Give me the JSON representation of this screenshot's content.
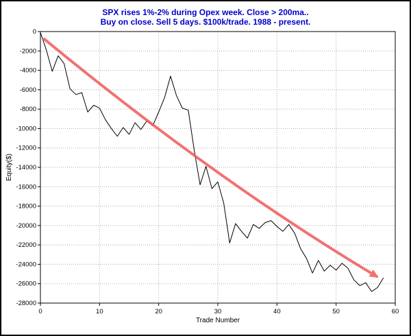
{
  "header": {
    "line1": "SPX rises 1%-2% during Opex week. Close > 200ma..",
    "line2": "Buy on close. Sell 5 days. $100k/trade. 1988 - present."
  },
  "colors": {
    "title": "#0000c8",
    "axis_text": "#000000",
    "grid": "#aaaaaa",
    "plot_border": "#000000",
    "equity_line": "#000000",
    "arrow": "#ef5a5a"
  },
  "chart_data": {
    "type": "line",
    "title": "SPX rises 1%-2% during Opex week. Close > 200ma.. Buy on close. Sell 5 days. $100k/trade. 1988 - present.",
    "xlabel": "Trade Number",
    "ylabel": "Equity($)",
    "xlim": [
      0,
      60
    ],
    "ylim": [
      -28000,
      0
    ],
    "x_ticks": [
      0,
      10,
      20,
      30,
      40,
      50,
      60
    ],
    "y_ticks": [
      0,
      -2000,
      -4000,
      -6000,
      -8000,
      -10000,
      -12000,
      -14000,
      -16000,
      -18000,
      -20000,
      -22000,
      -24000,
      -26000,
      -28000
    ],
    "grid": true,
    "legend": "none",
    "series": [
      {
        "name": "equity_curve",
        "color": "#000000",
        "x": [
          0,
          1,
          2,
          3,
          4,
          5,
          6,
          7,
          8,
          9,
          10,
          11,
          12,
          13,
          14,
          15,
          16,
          17,
          18,
          19,
          20,
          21,
          22,
          23,
          24,
          25,
          26,
          27,
          28,
          29,
          30,
          31,
          32,
          33,
          34,
          35,
          36,
          37,
          38,
          39,
          40,
          41,
          42,
          43,
          44,
          45,
          46,
          47,
          48,
          49,
          50,
          51,
          52,
          53,
          54,
          55,
          56,
          57,
          58
        ],
        "y": [
          -100,
          -1900,
          -4100,
          -2500,
          -3300,
          -5900,
          -6500,
          -6300,
          -8300,
          -7600,
          -7900,
          -9100,
          -10000,
          -10800,
          -9900,
          -10600,
          -9400,
          -10100,
          -9200,
          -9700,
          -8300,
          -6800,
          -4600,
          -6600,
          -7900,
          -8100,
          -12200,
          -15800,
          -13900,
          -16200,
          -15500,
          -17700,
          -21800,
          -19800,
          -20600,
          -21300,
          -19900,
          -20300,
          -19700,
          -19500,
          -20100,
          -20600,
          -19900,
          -20800,
          -22400,
          -23400,
          -24900,
          -23600,
          -24700,
          -24100,
          -24600,
          -23900,
          -24400,
          -25600,
          -26200,
          -25900,
          -26800,
          -26400,
          -25400
        ]
      }
    ],
    "trend_arrow": {
      "color": "#ef5a5a",
      "start": [
        0.5,
        -700
      ],
      "control": [
        30,
        -15500
      ],
      "end": [
        57,
        -25300
      ]
    }
  }
}
